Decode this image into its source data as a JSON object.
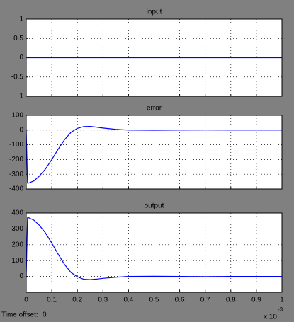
{
  "chart_data": [
    {
      "type": "line",
      "title": "input",
      "x": [
        0,
        1
      ],
      "series": [
        {
          "name": "input",
          "color": "#0000ff",
          "values": [
            0,
            0
          ]
        }
      ],
      "xlim": [
        0,
        1
      ],
      "xticks": [
        0,
        0.1,
        0.2,
        0.3,
        0.4,
        0.5,
        0.6,
        0.7,
        0.8,
        0.9,
        1
      ],
      "ylim": [
        -1,
        1
      ],
      "yticks": [
        -1,
        -0.5,
        0,
        0.5,
        1
      ],
      "grid": true,
      "show_xtick_labels": false
    },
    {
      "type": "line",
      "title": "error",
      "x": [
        0,
        0.005,
        0.01,
        0.03,
        0.05,
        0.075,
        0.1,
        0.125,
        0.15,
        0.175,
        0.2,
        0.225,
        0.25,
        0.275,
        0.3,
        0.35,
        0.4,
        0.5,
        0.6,
        0.7,
        0.8,
        0.9,
        1
      ],
      "series": [
        {
          "name": "error",
          "color": "#0000ff",
          "values": [
            0,
            -360,
            -360,
            -345,
            -315,
            -265,
            -200,
            -130,
            -65,
            -15,
            12,
            24,
            25,
            20,
            14,
            5,
            0,
            -1,
            0,
            1,
            0,
            0,
            0
          ]
        }
      ],
      "xlim": [
        0,
        1
      ],
      "xticks": [
        0,
        0.1,
        0.2,
        0.3,
        0.4,
        0.5,
        0.6,
        0.7,
        0.8,
        0.9,
        1
      ],
      "ylim": [
        -400,
        100
      ],
      "yticks": [
        -400,
        -300,
        -200,
        -100,
        0,
        100
      ],
      "grid": true,
      "show_xtick_labels": false
    },
    {
      "type": "line",
      "title": "output",
      "x": [
        0,
        0.005,
        0.01,
        0.03,
        0.05,
        0.075,
        0.1,
        0.125,
        0.15,
        0.175,
        0.2,
        0.225,
        0.25,
        0.275,
        0.3,
        0.35,
        0.4,
        0.5,
        0.6,
        0.7,
        0.8,
        0.9,
        1
      ],
      "series": [
        {
          "name": "output",
          "color": "#0000ff",
          "values": [
            0,
            370,
            370,
            355,
            325,
            275,
            210,
            140,
            75,
            25,
            -2,
            -18,
            -20,
            -17,
            -12,
            -5,
            0,
            1,
            0,
            -1,
            0,
            0,
            0
          ]
        }
      ],
      "xlim": [
        0,
        1
      ],
      "xticks": [
        0,
        0.1,
        0.2,
        0.3,
        0.4,
        0.5,
        0.6,
        0.7,
        0.8,
        0.9,
        1
      ],
      "ylim": [
        -100,
        400
      ],
      "yticks": [
        0,
        100,
        200,
        300,
        400
      ],
      "grid": true,
      "show_xtick_labels": true,
      "x_multiplier": "x 10",
      "x_exponent": "-3"
    }
  ],
  "footer": {
    "label": "Time offset:",
    "value": 0
  }
}
